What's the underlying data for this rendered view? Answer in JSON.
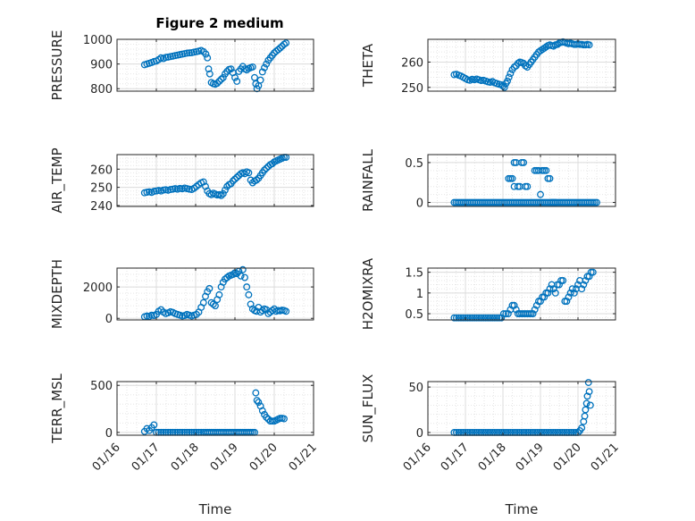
{
  "figure": {
    "title": "Figure 2 medium",
    "marker_color": "#0072bd",
    "x_tick_labels": [
      "01/16",
      "01/17",
      "01/18",
      "01/19",
      "01/20",
      "01/21"
    ],
    "x_label": "Time"
  },
  "chart_data": [
    {
      "type": "scatter",
      "ylabel": "PRESSURE",
      "xlim": [
        16,
        21
      ],
      "ylim": [
        790,
        1000
      ],
      "yticks": [
        800,
        900,
        1000
      ],
      "ytick_labels": [
        "800",
        "900",
        "1000"
      ],
      "grid": true,
      "x": [
        16.7,
        16.76,
        16.82,
        16.88,
        16.94,
        17.0,
        17.06,
        17.12,
        17.18,
        17.24,
        17.3,
        17.36,
        17.42,
        17.48,
        17.54,
        17.6,
        17.66,
        17.72,
        17.78,
        17.84,
        17.9,
        17.96,
        18.02,
        18.08,
        18.14,
        18.2,
        18.26,
        18.3,
        18.33,
        18.36,
        18.4,
        18.45,
        18.5,
        18.55,
        18.6,
        18.65,
        18.7,
        18.75,
        18.8,
        18.85,
        18.9,
        18.95,
        19.0,
        19.05,
        19.1,
        19.15,
        19.2,
        19.25,
        19.3,
        19.35,
        19.4,
        19.45,
        19.5,
        19.53,
        19.56,
        19.6,
        19.65,
        19.7,
        19.75,
        19.8,
        19.85,
        19.9,
        19.95,
        20.0,
        20.05,
        20.1,
        20.15,
        20.2,
        20.25,
        20.3
      ],
      "y": [
        897,
        900,
        903,
        906,
        910,
        912,
        918,
        925,
        922,
        927,
        928,
        930,
        932,
        934,
        936,
        938,
        940,
        942,
        944,
        945,
        946,
        948,
        950,
        952,
        955,
        950,
        940,
        925,
        880,
        860,
        825,
        820,
        818,
        822,
        830,
        838,
        845,
        860,
        870,
        878,
        880,
        865,
        845,
        830,
        870,
        880,
        890,
        880,
        876,
        882,
        885,
        888,
        845,
        820,
        800,
        812,
        835,
        868,
        885,
        900,
        915,
        925,
        935,
        945,
        952,
        958,
        965,
        972,
        980,
        985
      ],
      "series_name": ""
    },
    {
      "type": "scatter",
      "ylabel": "THETA",
      "xlim": [
        16,
        21
      ],
      "ylim": [
        248.5,
        269
      ],
      "yticks": [
        250,
        260
      ],
      "ytick_labels": [
        "250",
        "260"
      ],
      "grid": true,
      "x": [
        16.7,
        16.76,
        16.82,
        16.88,
        16.94,
        17.0,
        17.06,
        17.12,
        17.18,
        17.24,
        17.3,
        17.36,
        17.42,
        17.48,
        17.54,
        17.6,
        17.66,
        17.72,
        17.78,
        17.84,
        17.9,
        17.96,
        18.0,
        18.04,
        18.08,
        18.12,
        18.16,
        18.2,
        18.25,
        18.3,
        18.35,
        18.4,
        18.45,
        18.5,
        18.55,
        18.6,
        18.65,
        18.7,
        18.75,
        18.8,
        18.85,
        18.9,
        18.95,
        19.0,
        19.05,
        19.1,
        19.15,
        19.2,
        19.25,
        19.3,
        19.35,
        19.4,
        19.45,
        19.5,
        19.55,
        19.6,
        19.65,
        19.7,
        19.75,
        19.8,
        19.85,
        19.9,
        19.95,
        20.0,
        20.05,
        20.1,
        20.15,
        20.2,
        20.25,
        20.3
      ],
      "y": [
        255,
        255.2,
        254.8,
        254.5,
        254.0,
        253.5,
        253.0,
        252.8,
        253.2,
        253.0,
        253.3,
        253.0,
        252.7,
        252.8,
        252.5,
        252.2,
        252.0,
        252.3,
        251.8,
        251.5,
        251.2,
        251.0,
        250.5,
        250.0,
        251.5,
        252.5,
        254.0,
        255.5,
        257.0,
        258.0,
        258.5,
        259.5,
        260.0,
        259.8,
        259.5,
        258.5,
        258.0,
        259.0,
        260.0,
        261.0,
        262.0,
        263.0,
        264.0,
        264.5,
        265.0,
        265.5,
        266.0,
        266.5,
        266.8,
        266.5,
        266.3,
        266.8,
        267.0,
        267.5,
        267.8,
        268.0,
        267.8,
        267.5,
        267.3,
        267.5,
        267.2,
        267.0,
        267.0,
        267.2,
        267.0,
        267.0,
        266.8,
        266.8,
        267.0,
        266.8
      ],
      "series_name": ""
    },
    {
      "type": "scatter",
      "ylabel": "AIR_TEMP",
      "xlim": [
        16,
        21
      ],
      "ylim": [
        239.5,
        268
      ],
      "yticks": [
        240,
        250,
        260
      ],
      "ytick_labels": [
        "240",
        "250",
        "260"
      ],
      "grid": true,
      "x": [
        16.7,
        16.76,
        16.82,
        16.88,
        16.94,
        17.0,
        17.06,
        17.12,
        17.18,
        17.24,
        17.3,
        17.36,
        17.42,
        17.48,
        17.54,
        17.6,
        17.66,
        17.72,
        17.78,
        17.84,
        17.9,
        17.96,
        18.02,
        18.08,
        18.14,
        18.2,
        18.25,
        18.3,
        18.35,
        18.4,
        18.45,
        18.5,
        18.55,
        18.6,
        18.65,
        18.7,
        18.75,
        18.8,
        18.85,
        18.9,
        18.95,
        19.0,
        19.05,
        19.1,
        19.15,
        19.2,
        19.25,
        19.3,
        19.35,
        19.4,
        19.45,
        19.5,
        19.55,
        19.6,
        19.65,
        19.7,
        19.75,
        19.8,
        19.85,
        19.9,
        19.95,
        20.0,
        20.05,
        20.1,
        20.15,
        20.2,
        20.25,
        20.3
      ],
      "y": [
        247,
        247.3,
        247.5,
        247.2,
        247.8,
        248.0,
        248.3,
        248.0,
        248.5,
        248.7,
        248.4,
        248.8,
        249.0,
        249.3,
        249.0,
        249.4,
        249.2,
        249.6,
        249.3,
        249.0,
        248.8,
        249.5,
        250.5,
        251.5,
        252.5,
        253.0,
        250.5,
        248.0,
        246.5,
        246.0,
        246.8,
        246.3,
        245.8,
        246.0,
        245.5,
        246.5,
        248.5,
        250.5,
        251.5,
        252.0,
        253.5,
        254.5,
        255.5,
        256.5,
        257.5,
        258.0,
        257.5,
        258.5,
        258.0,
        254.0,
        252.5,
        253.5,
        254.0,
        255.0,
        256.5,
        258.0,
        259.5,
        260.5,
        261.5,
        262.5,
        263.0,
        264.0,
        264.5,
        265.0,
        265.5,
        266.0,
        266.5,
        266.5
      ],
      "series_name": ""
    },
    {
      "type": "scatter",
      "ylabel": "RAINFALL",
      "xlim": [
        16,
        21
      ],
      "ylim": [
        -0.05,
        0.6
      ],
      "yticks": [
        0,
        0.5
      ],
      "ytick_labels": [
        "0",
        "0.5"
      ],
      "grid": true,
      "x": [
        16.7,
        16.75,
        16.8,
        16.85,
        16.9,
        16.95,
        17.0,
        17.05,
        17.1,
        17.15,
        17.2,
        17.25,
        17.3,
        17.35,
        17.4,
        17.45,
        17.5,
        17.55,
        17.6,
        17.65,
        17.7,
        17.75,
        17.8,
        17.85,
        17.9,
        17.95,
        18.0,
        18.05,
        18.1,
        18.15,
        18.2,
        18.25,
        18.3,
        18.35,
        18.4,
        18.45,
        18.5,
        18.55,
        18.6,
        18.65,
        18.7,
        18.75,
        18.8,
        18.85,
        18.9,
        18.95,
        19.0,
        19.05,
        19.1,
        19.15,
        19.2,
        19.25,
        19.3,
        19.35,
        19.4,
        19.45,
        19.5,
        19.55,
        19.6,
        19.65,
        19.7,
        19.75,
        19.8,
        19.85,
        19.9,
        19.95,
        20.0,
        20.05,
        20.1,
        20.15,
        20.2,
        20.25,
        20.3,
        20.35,
        20.4,
        20.45,
        20.5,
        18.15,
        18.2,
        18.25,
        18.3,
        18.3,
        18.35,
        18.4,
        18.45,
        18.5,
        18.55,
        18.6,
        18.65,
        18.85,
        18.9,
        18.95,
        19.0,
        19.05,
        19.1,
        19.15,
        19.2,
        19.25,
        19.3,
        19.35,
        19.4
      ],
      "y": [
        0,
        0,
        0,
        0,
        0,
        0,
        0,
        0,
        0,
        0,
        0,
        0,
        0,
        0,
        0,
        0,
        0,
        0,
        0,
        0,
        0,
        0,
        0,
        0,
        0,
        0,
        0,
        0,
        0,
        0,
        0,
        0,
        0,
        0,
        0,
        0,
        0,
        0,
        0,
        0,
        0,
        0,
        0,
        0,
        0,
        0,
        0,
        0,
        0,
        0,
        0,
        0,
        0,
        0,
        0,
        0,
        0,
        0,
        0,
        0,
        0,
        0,
        0,
        0,
        0,
        0,
        0,
        0,
        0,
        0,
        0,
        0,
        0,
        0,
        0,
        0,
        0,
        0.3,
        0.3,
        0.3,
        0.5,
        0.2,
        0.5,
        0.2,
        0.2,
        0.5,
        0.5,
        0.2,
        0.2,
        0.4,
        0.4,
        0.4,
        0.1,
        0.4,
        0.4,
        0.4,
        0.3,
        0.3,
        0,
        0,
        0
      ],
      "series_name": ""
    },
    {
      "type": "scatter",
      "ylabel": "MIXDEPTH",
      "xlim": [
        16,
        21
      ],
      "ylim": [
        -100,
        3200
      ],
      "yticks": [
        0,
        2000
      ],
      "ytick_labels": [
        "0",
        "2000"
      ],
      "grid": true,
      "x": [
        16.7,
        16.76,
        16.82,
        16.88,
        16.94,
        17.0,
        17.06,
        17.12,
        17.18,
        17.24,
        17.3,
        17.36,
        17.42,
        17.48,
        17.54,
        17.6,
        17.66,
        17.72,
        17.78,
        17.84,
        17.9,
        17.96,
        18.02,
        18.08,
        18.14,
        18.2,
        18.25,
        18.3,
        18.35,
        18.4,
        18.45,
        18.5,
        18.55,
        18.6,
        18.65,
        18.7,
        18.75,
        18.8,
        18.85,
        18.9,
        18.95,
        19.0,
        19.05,
        19.1,
        19.15,
        19.2,
        19.25,
        19.3,
        19.35,
        19.4,
        19.45,
        19.5,
        19.55,
        19.6,
        19.65,
        19.7,
        19.75,
        19.8,
        19.85,
        19.9,
        19.95,
        20.0,
        20.05,
        20.1,
        20.15,
        20.2,
        20.25,
        20.3
      ],
      "y": [
        100,
        150,
        120,
        200,
        180,
        250,
        450,
        550,
        400,
        300,
        350,
        420,
        380,
        300,
        250,
        200,
        150,
        180,
        250,
        200,
        150,
        200,
        250,
        400,
        700,
        1000,
        1400,
        1700,
        1900,
        1000,
        900,
        800,
        1200,
        1500,
        2000,
        2300,
        2500,
        2600,
        2700,
        2750,
        2800,
        2900,
        2850,
        3000,
        2700,
        3100,
        2600,
        2000,
        1500,
        900,
        600,
        500,
        450,
        700,
        400,
        500,
        600,
        550,
        300,
        400,
        500,
        600,
        450,
        500,
        480,
        520,
        500,
        450
      ],
      "series_name": ""
    },
    {
      "type": "scatter",
      "ylabel": "H2OMIXRA",
      "xlim": [
        16,
        21
      ],
      "ylim": [
        0.35,
        1.6
      ],
      "yticks": [
        0.5,
        1,
        1.5
      ],
      "ytick_labels": [
        "0.5",
        "1",
        "1.5"
      ],
      "grid": true,
      "x": [
        16.7,
        16.76,
        16.82,
        16.88,
        16.94,
        17.0,
        17.06,
        17.12,
        17.18,
        17.24,
        17.3,
        17.36,
        17.42,
        17.48,
        17.54,
        17.6,
        17.66,
        17.72,
        17.78,
        17.84,
        17.9,
        17.96,
        18.02,
        18.08,
        18.14,
        18.2,
        18.25,
        18.3,
        18.35,
        18.4,
        18.45,
        18.5,
        18.55,
        18.6,
        18.65,
        18.7,
        18.75,
        18.8,
        18.85,
        18.9,
        18.95,
        19.0,
        19.05,
        19.1,
        19.15,
        19.2,
        19.25,
        19.3,
        19.35,
        19.4,
        19.45,
        19.5,
        19.55,
        19.6,
        19.65,
        19.7,
        19.75,
        19.8,
        19.85,
        19.9,
        19.95,
        20.0,
        20.05,
        20.1,
        20.15,
        20.2,
        20.25,
        20.3,
        20.35,
        20.4
      ],
      "y": [
        0.4,
        0.4,
        0.4,
        0.4,
        0.4,
        0.4,
        0.4,
        0.4,
        0.4,
        0.4,
        0.4,
        0.4,
        0.4,
        0.4,
        0.4,
        0.4,
        0.4,
        0.4,
        0.4,
        0.4,
        0.4,
        0.4,
        0.5,
        0.5,
        0.5,
        0.6,
        0.7,
        0.7,
        0.6,
        0.5,
        0.5,
        0.5,
        0.5,
        0.5,
        0.5,
        0.5,
        0.5,
        0.5,
        0.6,
        0.7,
        0.8,
        0.8,
        0.9,
        0.9,
        1.0,
        1.0,
        1.1,
        1.2,
        1.1,
        1.0,
        1.2,
        1.2,
        1.3,
        1.3,
        0.8,
        0.8,
        0.9,
        1.0,
        1.1,
        1.0,
        1.1,
        1.2,
        1.3,
        1.1,
        1.2,
        1.3,
        1.4,
        1.4,
        1.5,
        1.5
      ],
      "series_name": ""
    },
    {
      "type": "scatter",
      "ylabel": "TERR_MSL",
      "xlim": [
        16,
        21
      ],
      "ylim": [
        -30,
        540
      ],
      "yticks": [
        0,
        500
      ],
      "ytick_labels": [
        "0",
        "500"
      ],
      "grid": true,
      "x": [
        16.7,
        16.76,
        16.82,
        16.88,
        16.94,
        17.0,
        17.06,
        17.12,
        17.18,
        17.24,
        17.3,
        17.36,
        17.42,
        17.48,
        17.54,
        17.6,
        17.66,
        17.72,
        17.78,
        17.84,
        17.9,
        17.96,
        18.02,
        18.08,
        18.14,
        18.2,
        18.25,
        18.3,
        18.35,
        18.4,
        18.45,
        18.5,
        18.55,
        18.6,
        18.65,
        18.7,
        18.75,
        18.8,
        18.85,
        18.9,
        18.95,
        19.0,
        19.05,
        19.1,
        19.15,
        19.2,
        19.25,
        19.3,
        19.35,
        19.4,
        19.45,
        19.5,
        19.53,
        19.56,
        19.6,
        19.65,
        19.7,
        19.75,
        19.8,
        19.85,
        19.9,
        19.95,
        20.0,
        20.05,
        20.1,
        20.15,
        20.2,
        20.25
      ],
      "y": [
        10,
        40,
        20,
        50,
        80,
        0,
        0,
        0,
        0,
        0,
        0,
        0,
        0,
        0,
        0,
        0,
        0,
        0,
        0,
        0,
        0,
        0,
        0,
        0,
        0,
        0,
        0,
        0,
        0,
        0,
        0,
        0,
        0,
        0,
        0,
        0,
        0,
        0,
        0,
        0,
        0,
        0,
        0,
        0,
        0,
        0,
        0,
        0,
        0,
        0,
        0,
        0,
        420,
        340,
        320,
        280,
        230,
        190,
        160,
        140,
        120,
        120,
        120,
        130,
        140,
        150,
        150,
        145
      ],
      "series_name": ""
    },
    {
      "type": "scatter",
      "ylabel": "SUN_FLUX",
      "xlim": [
        16,
        21
      ],
      "ylim": [
        -3,
        56
      ],
      "yticks": [
        0,
        50
      ],
      "ytick_labels": [
        "0",
        "50"
      ],
      "grid": true,
      "x": [
        16.7,
        16.76,
        16.82,
        16.88,
        16.94,
        17.0,
        17.06,
        17.12,
        17.18,
        17.24,
        17.3,
        17.36,
        17.42,
        17.48,
        17.54,
        17.6,
        17.66,
        17.72,
        17.78,
        17.84,
        17.9,
        17.96,
        18.02,
        18.08,
        18.14,
        18.2,
        18.26,
        18.32,
        18.38,
        18.44,
        18.5,
        18.56,
        18.62,
        18.68,
        18.74,
        18.8,
        18.86,
        18.92,
        18.98,
        19.04,
        19.1,
        19.16,
        19.22,
        19.28,
        19.34,
        19.4,
        19.46,
        19.52,
        19.58,
        19.64,
        19.7,
        19.76,
        19.82,
        19.88,
        19.94,
        20.0,
        20.05,
        20.1,
        20.15,
        20.18,
        20.2,
        20.23,
        20.25,
        20.28,
        20.3,
        20.33
      ],
      "y": [
        0,
        0,
        0,
        0,
        0,
        0,
        0,
        0,
        0,
        0,
        0,
        0,
        0,
        0,
        0,
        0,
        0,
        0,
        0,
        0,
        0,
        0,
        0,
        0,
        0,
        0,
        0,
        0,
        0,
        0,
        0,
        0,
        0,
        0,
        0,
        0,
        0,
        0,
        0,
        0,
        0,
        0,
        0,
        0,
        0,
        0,
        0,
        0,
        0,
        0,
        0,
        0,
        0,
        0,
        0,
        0,
        2,
        5,
        12,
        18,
        25,
        32,
        40,
        55,
        45,
        30
      ],
      "series_name": ""
    }
  ]
}
